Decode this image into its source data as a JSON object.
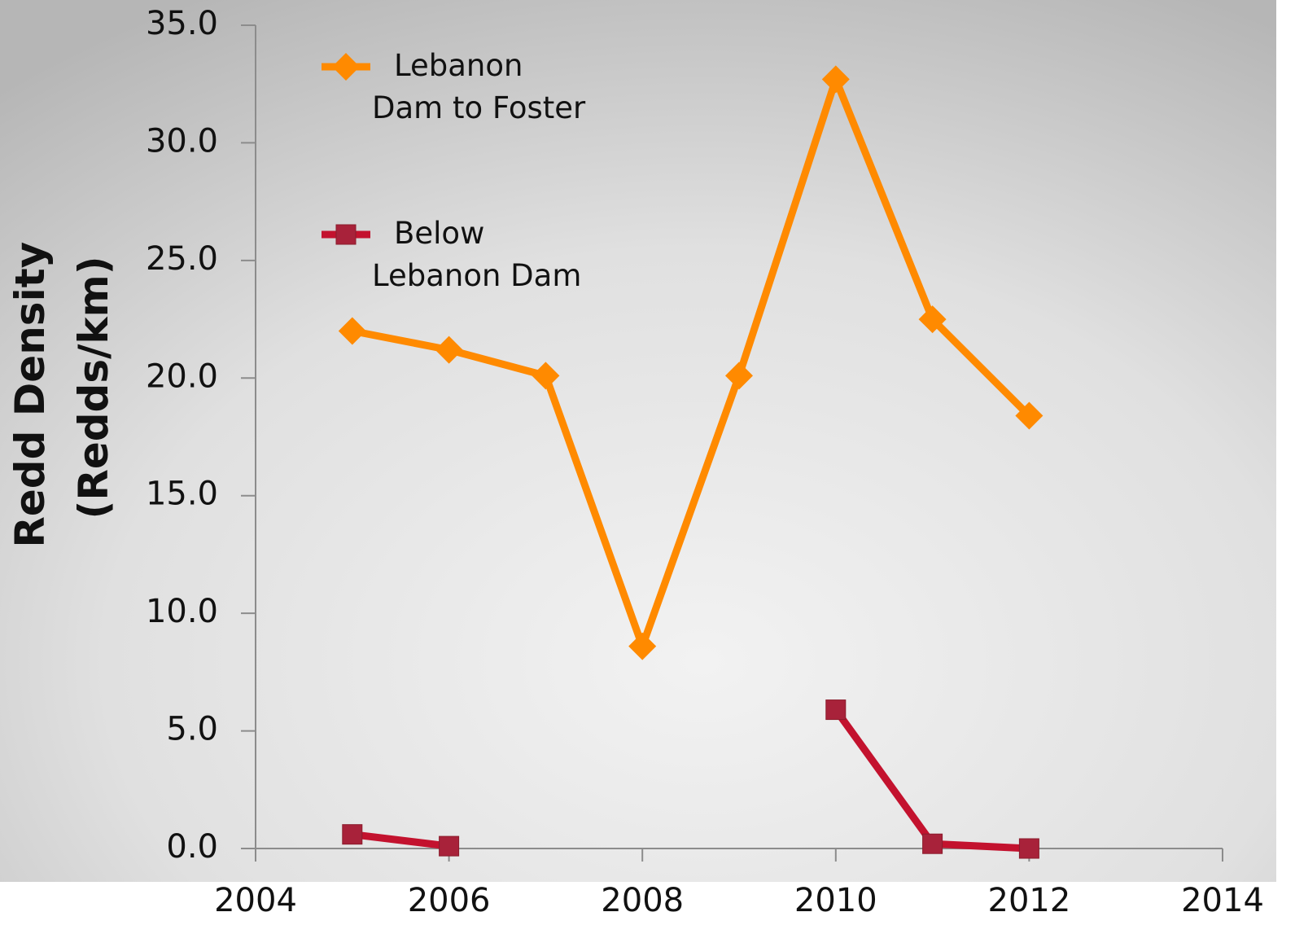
{
  "chart_data": {
    "type": "line",
    "y_label": "Redd Density (Redds/km)",
    "x": [
      2005,
      2006,
      2007,
      2008,
      2009,
      2010,
      2011,
      2012
    ],
    "series": [
      {
        "name": "Lebanon Dam to Foster",
        "color": "#ff8a00",
        "marker": "diamond",
        "values": [
          22.0,
          21.2,
          20.1,
          8.6,
          20.1,
          32.7,
          22.5,
          18.4
        ]
      },
      {
        "name": "Below Lebanon Dam",
        "color": "#c3122e",
        "marker": "square",
        "values": [
          0.6,
          0.1,
          null,
          null,
          null,
          5.9,
          0.2,
          0.0
        ]
      }
    ],
    "xlim": [
      2004,
      2014
    ],
    "xticks": [
      2004,
      2006,
      2008,
      2010,
      2012,
      2014
    ],
    "ylim": [
      0,
      35
    ],
    "yticks": [
      {
        "value": 0,
        "label": "0.0"
      },
      {
        "value": 5,
        "label": "5.0"
      },
      {
        "value": 10,
        "label": "10.0"
      },
      {
        "value": 15,
        "label": "15.0"
      },
      {
        "value": 20,
        "label": "20.0"
      },
      {
        "value": 25,
        "label": "25.0"
      },
      {
        "value": 30,
        "label": "30.0"
      },
      {
        "value": 35,
        "label": "35.0"
      }
    ],
    "grid": false,
    "legend": "upper left"
  }
}
